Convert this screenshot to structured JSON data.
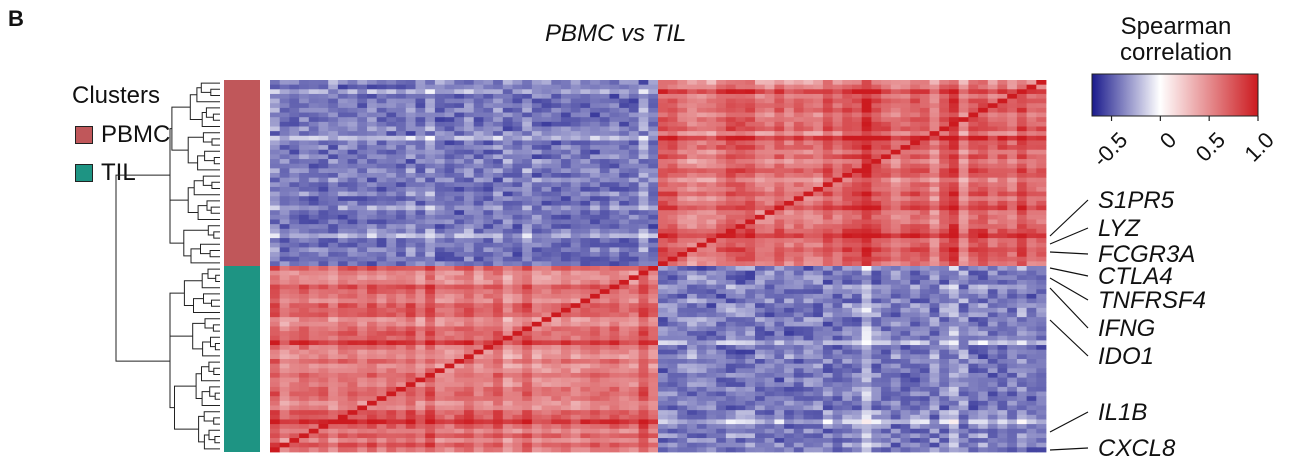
{
  "panel_label": "B",
  "colors": {
    "PBMC": "#c0575a",
    "TIL": "#1e9483",
    "low": "#1a1a8c",
    "mid": "#ffffff",
    "high": "#cc1a1f"
  },
  "chart_data": {
    "type": "heatmap",
    "title": "PBMC vs TIL",
    "cluster_legend_title": "Clusters",
    "clusters": [
      {
        "name": "PBMC",
        "color": "#c0575a"
      },
      {
        "name": "TIL",
        "color": "#1e9483"
      }
    ],
    "colorbar": {
      "title_line1": "Spearman",
      "title_line2": "correlation",
      "range": [
        -0.7,
        1.0
      ],
      "ticks": [
        "-0.5",
        "0",
        "0.5",
        "1.0"
      ],
      "tick_values": [
        -0.5,
        0,
        0.5,
        1.0
      ],
      "colors": [
        "#1a1a8c",
        "#ffffff",
        "#cc1a1f"
      ]
    },
    "matrix_structure": {
      "row_cluster_order": [
        "PBMC",
        "TIL"
      ],
      "column_cluster_order": [
        "TIL",
        "PBMC"
      ],
      "within_cluster_correlation": 0.6,
      "between_cluster_correlation": -0.5,
      "diagonal": 1.0
    },
    "gene_labels": [
      "S1PR5",
      "LYZ",
      "FCGR3A",
      "CTLA4",
      "TNFRSF4",
      "IFNG",
      "IDO1",
      "IL1B",
      "CXCL8"
    ]
  }
}
